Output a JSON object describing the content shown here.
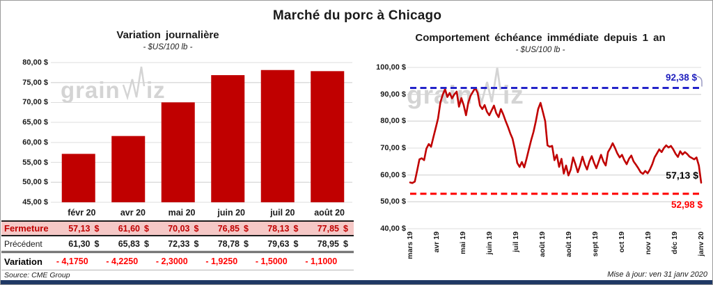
{
  "header": {
    "title": "Marché du porc à Chicago"
  },
  "watermark": {
    "prefix": "grain",
    "suffix": "iz"
  },
  "colors": {
    "bar_red": "#C00000",
    "line_red": "#C00000",
    "bright_red": "#FF0000",
    "ref_blue": "#2323C9",
    "pink_row": "#F5C8C6",
    "navy_bar": "#1F3864",
    "gridline": "#DCDCDC",
    "watermark_gray": "#D4D4D4"
  },
  "chart_data": [
    {
      "type": "bar",
      "title": "Variation journalière",
      "subtitle": "- $US/100 lb -",
      "categories": [
        "févr 20",
        "avr 20",
        "mai 20",
        "juin 20",
        "juil 20",
        "août 20"
      ],
      "values": [
        57.13,
        61.6,
        70.03,
        76.85,
        78.13,
        77.85
      ],
      "ylim": [
        45,
        80
      ],
      "yticks": [
        80,
        75,
        70,
        65,
        60,
        55,
        50,
        45
      ],
      "ytick_labels": [
        "80,00 $",
        "75,00 $",
        "70,00 $",
        "65,00 $",
        "60,00 $",
        "55,00 $",
        "50,00 $",
        "45,00 $"
      ],
      "grid": true,
      "bar_color": "#C00000"
    },
    {
      "type": "line",
      "title": "Comportement échéance immédiate depuis 1 an",
      "subtitle": "- $US/100 lb -",
      "x_labels": [
        "mars 19",
        "avr 19",
        "mai 19",
        "juin 19",
        "juil 19",
        "août 19",
        "août 19",
        "sept 19",
        "oct 19",
        "nov 19",
        "déc 19",
        "janv 20"
      ],
      "values": [
        57.2,
        57.0,
        57.5,
        61.5,
        65.8,
        66.2,
        65.5,
        69.8,
        71.5,
        70.5,
        74.0,
        77.5,
        81.0,
        87.0,
        89.8,
        91.9,
        89.0,
        90.5,
        88.5,
        90.0,
        91.0,
        85.4,
        88.6,
        86.0,
        82.2,
        87.0,
        89.5,
        91.0,
        92.38,
        90.5,
        85.8,
        84.5,
        86.0,
        83.5,
        82.2,
        84.0,
        85.8,
        83.0,
        81.5,
        84.5,
        82.5,
        80.1,
        78.0,
        75.5,
        73.5,
        69.5,
        64.5,
        63.0,
        64.8,
        62.8,
        66.0,
        69.5,
        73.0,
        76.0,
        80.0,
        84.5,
        86.8,
        83.5,
        80.0,
        71.0,
        70.5,
        70.8,
        65.5,
        67.5,
        63.0,
        66.0,
        60.5,
        63.5,
        59.8,
        62.0,
        66.5,
        64.0,
        61.0,
        63.5,
        66.8,
        64.0,
        62.0,
        65.0,
        67.0,
        64.5,
        62.5,
        65.0,
        67.5,
        65.0,
        63.5,
        68.5,
        70.0,
        71.8,
        70.0,
        68.0,
        66.5,
        67.5,
        65.5,
        64.0,
        66.0,
        67.2,
        65.0,
        63.8,
        62.5,
        61.0,
        60.4,
        61.5,
        60.6,
        62.0,
        64.0,
        66.5,
        68.0,
        69.5,
        68.5,
        70.0,
        71.0,
        70.2,
        70.8,
        69.5,
        67.9,
        66.7,
        68.8,
        67.6,
        68.5,
        67.8,
        66.8,
        66.3,
        65.8,
        66.5,
        63.5,
        57.13
      ],
      "ylim": [
        40,
        100
      ],
      "yticks": [
        100,
        90,
        80,
        70,
        60,
        50,
        40
      ],
      "ytick_labels": [
        "100,00 $",
        "90,00 $",
        "80,00 $",
        "70,00 $",
        "60,00 $",
        "50,00 $",
        "40,00 $"
      ],
      "grid": true,
      "line_color": "#C00000",
      "legend_position": "none",
      "ref_lines": [
        {
          "value": 92.38,
          "label": "92,38 $",
          "color": "#2323C9",
          "style": "dashed"
        },
        {
          "value": 52.98,
          "label": "52,98 $",
          "color": "#FF0000",
          "style": "dashed"
        }
      ],
      "end_label": {
        "value": 57.13,
        "label": "57,13 $"
      }
    }
  ],
  "table": {
    "columns": [
      "févr 20",
      "avr 20",
      "mai 20",
      "juin 20",
      "juil 20",
      "août 20"
    ],
    "rows": [
      {
        "label": "Fermeture",
        "values": [
          "57,13",
          "61,60",
          "70,03",
          "76,85",
          "78,13",
          "77,85"
        ],
        "currency": "$",
        "style": "fermeture"
      },
      {
        "label": "Précédent",
        "values": [
          "61,30",
          "65,83",
          "72,33",
          "78,78",
          "79,63",
          "78,95"
        ],
        "currency": "$",
        "style": "precedent"
      },
      {
        "label": "Variation",
        "values": [
          "- 4,1750",
          "- 4,2250",
          "- 2,3000",
          "- 1,9250",
          "- 1,5000",
          "- 1,1000"
        ],
        "currency": "",
        "style": "variation"
      }
    ]
  },
  "footer": {
    "source": "Source: CME Group",
    "updated": "Mise à jour: ven 31 janv 2020"
  }
}
